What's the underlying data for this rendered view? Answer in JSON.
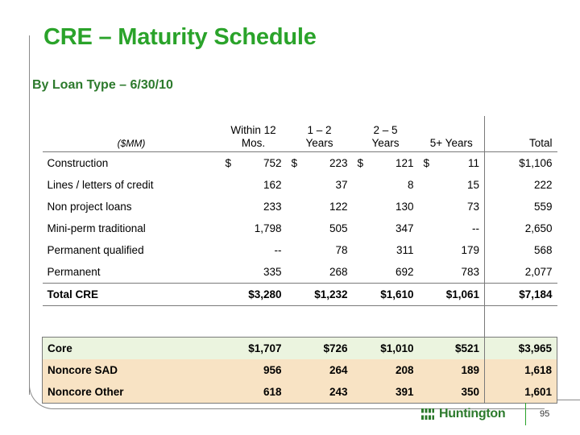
{
  "title": "CRE – Maturity Schedule",
  "subtitle": "By Loan Type – 6/30/10",
  "table": {
    "unit_label": "($MM)",
    "headers": [
      {
        "line1": "Within 12",
        "line2": "Mos."
      },
      {
        "line1": "1 – 2",
        "line2": "Years"
      },
      {
        "line1": "2 – 5",
        "line2": "Years"
      },
      {
        "line1": "",
        "line2": "5+ Years"
      },
      {
        "line1": "",
        "line2": "Total"
      }
    ],
    "rows": [
      {
        "label": "Construction",
        "values": [
          "752",
          "223",
          "121",
          "11",
          "$1,106"
        ],
        "dollar_prefix": "$"
      },
      {
        "label": "Lines / letters of credit",
        "values": [
          "162",
          "37",
          "8",
          "15",
          "222"
        ]
      },
      {
        "label": "Non project loans",
        "values": [
          "233",
          "122",
          "130",
          "73",
          "559"
        ]
      },
      {
        "label": "Mini-perm traditional",
        "values": [
          "1,798",
          "505",
          "347",
          "--",
          "2,650"
        ]
      },
      {
        "label": "Permanent qualified",
        "values": [
          "--",
          "78",
          "311",
          "179",
          "568"
        ]
      },
      {
        "label": "Permanent",
        "values": [
          "335",
          "268",
          "692",
          "783",
          "2,077"
        ]
      }
    ],
    "total_row": {
      "label": "Total CRE",
      "values": [
        "$3,280",
        "$1,232",
        "$1,610",
        "$1,061",
        "$7,184"
      ]
    },
    "segment_rows": [
      {
        "label": "Core",
        "values": [
          "$1,707",
          "$726",
          "$1,010",
          "$521",
          "$3,965"
        ],
        "color": "#ebf4df"
      },
      {
        "label": "Noncore SAD",
        "values": [
          "956",
          "264",
          "208",
          "189",
          "1,618"
        ],
        "color": "#f8e3c4"
      },
      {
        "label": "Noncore Other",
        "values": [
          "618",
          "243",
          "391",
          "350",
          "1,601"
        ],
        "color": "#f8e3c4"
      }
    ]
  },
  "footer": {
    "logo_text": "Huntington",
    "page_number": "95"
  },
  "colors": {
    "title_green": "#2aa32a",
    "subtitle_green": "#2c7a2c",
    "core_fill": "#ebf4df",
    "noncore_fill": "#f8e3c4"
  }
}
